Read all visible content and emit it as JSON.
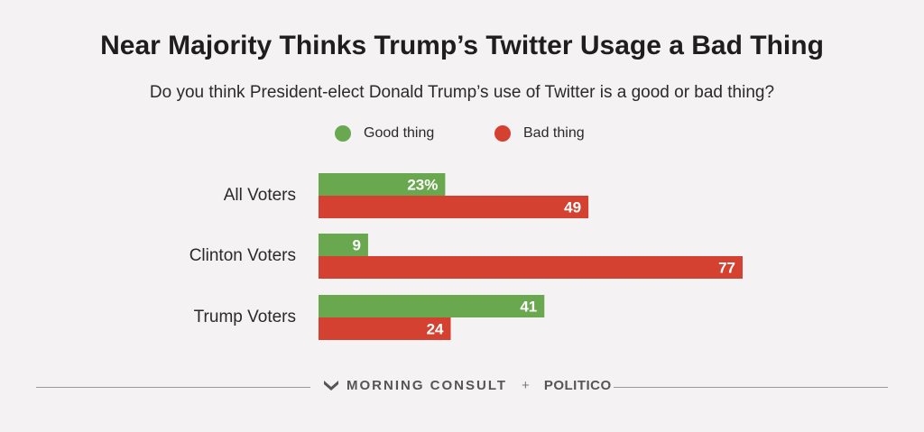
{
  "colors": {
    "good": "#6aa84f",
    "bad": "#d44130",
    "background": "#f4f2f2"
  },
  "chart_data": {
    "type": "bar",
    "orientation": "horizontal",
    "title": "Near Majority Thinks Trump’s Twitter Usage a Bad Thing",
    "subtitle": "Do you think President-elect Donald Trump’s use of Twitter is a good or bad thing?",
    "categories": [
      "All Voters",
      "Clinton Voters",
      "Trump Voters"
    ],
    "series": [
      {
        "name": "Good thing",
        "values": [
          23,
          9,
          41
        ],
        "labels": [
          "23%",
          "9",
          "41"
        ]
      },
      {
        "name": "Bad thing",
        "values": [
          49,
          77,
          24
        ],
        "labels": [
          "49",
          "77",
          "24"
        ]
      }
    ],
    "xlim": [
      0,
      77
    ],
    "grid": false,
    "legend": "top-center"
  },
  "footer": {
    "logo_icon": "morning-consult-logo-icon",
    "morning_consult": "MORNING CONSULT",
    "separator": "+",
    "politico": "POLITICO"
  }
}
